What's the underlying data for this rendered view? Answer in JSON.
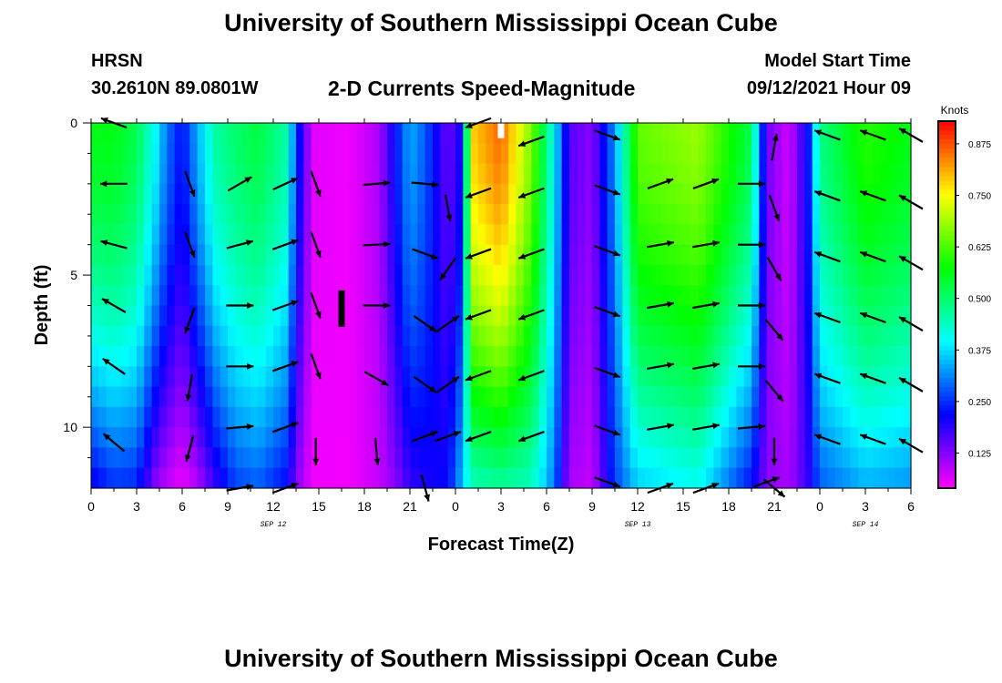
{
  "header": {
    "title": "University of Southern Mississippi Ocean Cube",
    "station": "HRSN",
    "coords": "30.2610N  89.0801W",
    "subtitle": "2-D Currents Speed-Magnitude",
    "model_start_label": "Model Start Time",
    "model_start_value": "09/12/2021 Hour 09"
  },
  "footer": {
    "title": "University of Southern Mississippi Ocean Cube"
  },
  "chart_data": {
    "type": "heatmap",
    "title": "2-D Currents Speed-Magnitude",
    "xlabel": "Forecast Time(Z)",
    "ylabel": "Depth (ft)",
    "x_range_hours": [
      0,
      54
    ],
    "y_range_ft": [
      0,
      12
    ],
    "y_reversed": true,
    "x_tick_labels": [
      "0",
      "3",
      "6",
      "9",
      "12",
      "15",
      "18",
      "21",
      "0",
      "3",
      "6",
      "9",
      "12",
      "15",
      "18",
      "21",
      "0",
      "3",
      "6"
    ],
    "y_tick_labels": [
      "0",
      "5",
      "10"
    ],
    "y_tick_values": [
      0,
      5,
      10
    ],
    "date_labels": [
      {
        "text": "SEP 12",
        "hour": 12
      },
      {
        "text": "SEP 13",
        "hour": 36
      },
      {
        "text": "SEP 14",
        "hour": 51
      }
    ],
    "colorbar": {
      "title": "Knots",
      "min": 0.04,
      "max": 0.93,
      "tick_labels": [
        "0.875",
        "0.750",
        "0.625",
        "0.500",
        "0.375",
        "0.250",
        "0.125"
      ],
      "tick_values": [
        0.875,
        0.75,
        0.625,
        0.5,
        0.375,
        0.25,
        0.125
      ]
    },
    "speed_profile_knots": [
      {
        "hour": 0,
        "surface": 0.56,
        "bottom": 0.2
      },
      {
        "hour": 1.5,
        "surface": 0.56,
        "bottom": 0.25
      },
      {
        "hour": 3,
        "surface": 0.52,
        "bottom": 0.24
      },
      {
        "hour": 4.2,
        "surface": 0.4,
        "bottom": 0.12
      },
      {
        "hour": 5,
        "surface": 0.3,
        "bottom": 0.08
      },
      {
        "hour": 6,
        "surface": 0.22,
        "bottom": 0.05
      },
      {
        "hour": 7,
        "surface": 0.34,
        "bottom": 0.09
      },
      {
        "hour": 8.2,
        "surface": 0.46,
        "bottom": 0.18
      },
      {
        "hour": 9.5,
        "surface": 0.5,
        "bottom": 0.26
      },
      {
        "hour": 11,
        "surface": 0.53,
        "bottom": 0.28
      },
      {
        "hour": 12.8,
        "surface": 0.46,
        "bottom": 0.22
      },
      {
        "hour": 13.8,
        "surface": 0.2,
        "bottom": 0.1
      },
      {
        "hour": 14.6,
        "surface": 0.06,
        "bottom": 0.05
      },
      {
        "hour": 17,
        "surface": 0.05,
        "bottom": 0.05
      },
      {
        "hour": 19,
        "surface": 0.1,
        "bottom": 0.08
      },
      {
        "hour": 20,
        "surface": 0.22,
        "bottom": 0.12
      },
      {
        "hour": 21,
        "surface": 0.34,
        "bottom": 0.18
      },
      {
        "hour": 22,
        "surface": 0.28,
        "bottom": 0.2
      },
      {
        "hour": 23.5,
        "surface": 0.14,
        "bottom": 0.22
      },
      {
        "hour": 24.5,
        "surface": 0.22,
        "bottom": 0.36
      },
      {
        "hour": 25,
        "surface": 0.78,
        "bottom": 0.44
      },
      {
        "hour": 27,
        "surface": 0.86,
        "bottom": 0.46
      },
      {
        "hour": 29,
        "surface": 0.66,
        "bottom": 0.44
      },
      {
        "hour": 30.5,
        "surface": 0.4,
        "bottom": 0.3
      },
      {
        "hour": 31.5,
        "surface": 0.16,
        "bottom": 0.1
      },
      {
        "hour": 33,
        "surface": 0.12,
        "bottom": 0.08
      },
      {
        "hour": 34.5,
        "surface": 0.32,
        "bottom": 0.26
      },
      {
        "hour": 36,
        "surface": 0.64,
        "bottom": 0.36
      },
      {
        "hour": 40,
        "surface": 0.68,
        "bottom": 0.4
      },
      {
        "hour": 43.5,
        "surface": 0.52,
        "bottom": 0.22
      },
      {
        "hour": 44.5,
        "surface": 0.14,
        "bottom": 0.12
      },
      {
        "hour": 46,
        "surface": 0.07,
        "bottom": 0.1
      },
      {
        "hour": 47.2,
        "surface": 0.22,
        "bottom": 0.18
      },
      {
        "hour": 48,
        "surface": 0.48,
        "bottom": 0.28
      },
      {
        "hour": 51,
        "surface": 0.6,
        "bottom": 0.34
      },
      {
        "hour": 54,
        "surface": 0.56,
        "bottom": 0.32
      }
    ],
    "current_arrows": [
      {
        "hour": 1.5,
        "depth": 0,
        "angle": 200
      },
      {
        "hour": 1.5,
        "depth": 2,
        "angle": 180
      },
      {
        "hour": 1.5,
        "depth": 4,
        "angle": 195
      },
      {
        "hour": 1.5,
        "depth": 6,
        "angle": 210
      },
      {
        "hour": 1.5,
        "depth": 8,
        "angle": 215
      },
      {
        "hour": 1.5,
        "depth": 10.5,
        "angle": 220
      },
      {
        "hour": 6.5,
        "depth": 2,
        "angle": 70
      },
      {
        "hour": 6.5,
        "depth": 4,
        "angle": 70
      },
      {
        "hour": 6.5,
        "depth": 6.5,
        "angle": 110
      },
      {
        "hour": 6.5,
        "depth": 8.7,
        "angle": 100
      },
      {
        "hour": 6.5,
        "depth": 10.7,
        "angle": 105
      },
      {
        "hour": 9.8,
        "depth": 2,
        "angle": -30
      },
      {
        "hour": 9.8,
        "depth": 4,
        "angle": -15
      },
      {
        "hour": 9.8,
        "depth": 6,
        "angle": 0
      },
      {
        "hour": 9.8,
        "depth": 8,
        "angle": 0
      },
      {
        "hour": 9.8,
        "depth": 10,
        "angle": -5
      },
      {
        "hour": 9.8,
        "depth": 12,
        "angle": -10
      },
      {
        "hour": 12.8,
        "depth": 2,
        "angle": -25
      },
      {
        "hour": 12.8,
        "depth": 4,
        "angle": -20
      },
      {
        "hour": 12.8,
        "depth": 6,
        "angle": -20
      },
      {
        "hour": 12.8,
        "depth": 8,
        "angle": -20
      },
      {
        "hour": 12.8,
        "depth": 10,
        "angle": -20
      },
      {
        "hour": 12.8,
        "depth": 12,
        "angle": -20
      },
      {
        "hour": 14.8,
        "depth": 2,
        "angle": 70
      },
      {
        "hour": 14.8,
        "depth": 4,
        "angle": 70
      },
      {
        "hour": 14.8,
        "depth": 6,
        "angle": 70
      },
      {
        "hour": 14.8,
        "depth": 8,
        "angle": 70
      },
      {
        "hour": 14.8,
        "depth": 10.8,
        "angle": 90
      },
      {
        "hour": 18.8,
        "depth": 2,
        "angle": -5
      },
      {
        "hour": 18.8,
        "depth": 4,
        "angle": -3
      },
      {
        "hour": 18.8,
        "depth": 6,
        "angle": 0
      },
      {
        "hour": 18.8,
        "depth": 8.4,
        "angle": 30
      },
      {
        "hour": 18.8,
        "depth": 10.8,
        "angle": 85
      },
      {
        "hour": 22,
        "depth": 2,
        "angle": 5
      },
      {
        "hour": 22,
        "depth": 4.3,
        "angle": 20
      },
      {
        "hour": 22,
        "depth": 6.6,
        "angle": 35
      },
      {
        "hour": 22,
        "depth": 8.6,
        "angle": 35
      },
      {
        "hour": 22,
        "depth": 10.3,
        "angle": -20
      },
      {
        "hour": 22,
        "depth": 12,
        "angle": 75
      },
      {
        "hour": 23.5,
        "depth": 2.8,
        "angle": 80
      },
      {
        "hour": 23.5,
        "depth": 4.8,
        "angle": 125
      },
      {
        "hour": 23.5,
        "depth": 6.6,
        "angle": -35
      },
      {
        "hour": 23.5,
        "depth": 8.6,
        "angle": -35
      },
      {
        "hour": 23.5,
        "depth": 10.3,
        "angle": -20
      },
      {
        "hour": 25.5,
        "depth": 0,
        "angle": 160
      },
      {
        "hour": 25.5,
        "depth": 2.3,
        "angle": 160
      },
      {
        "hour": 25.5,
        "depth": 4.3,
        "angle": 160
      },
      {
        "hour": 25.5,
        "depth": 6.3,
        "angle": 160
      },
      {
        "hour": 25.5,
        "depth": 8.3,
        "angle": 160
      },
      {
        "hour": 25.5,
        "depth": 10.3,
        "angle": 160
      },
      {
        "hour": 29,
        "depth": 0.6,
        "angle": 160
      },
      {
        "hour": 29,
        "depth": 2.3,
        "angle": 160
      },
      {
        "hour": 29,
        "depth": 4.3,
        "angle": 160
      },
      {
        "hour": 29,
        "depth": 6.3,
        "angle": 160
      },
      {
        "hour": 29,
        "depth": 8.3,
        "angle": 160
      },
      {
        "hour": 29,
        "depth": 10.3,
        "angle": 160
      },
      {
        "hour": 34,
        "depth": 0.4,
        "angle": 20
      },
      {
        "hour": 34,
        "depth": 2.2,
        "angle": 20
      },
      {
        "hour": 34,
        "depth": 4.2,
        "angle": 20
      },
      {
        "hour": 34,
        "depth": 6.2,
        "angle": 20
      },
      {
        "hour": 34,
        "depth": 8.2,
        "angle": 20
      },
      {
        "hour": 34,
        "depth": 10.1,
        "angle": 20
      },
      {
        "hour": 34,
        "depth": 11.8,
        "angle": 20
      },
      {
        "hour": 37.5,
        "depth": 2,
        "angle": -20
      },
      {
        "hour": 37.5,
        "depth": 4,
        "angle": -10
      },
      {
        "hour": 37.5,
        "depth": 6,
        "angle": -10
      },
      {
        "hour": 37.5,
        "depth": 8,
        "angle": -10
      },
      {
        "hour": 37.5,
        "depth": 10,
        "angle": -10
      },
      {
        "hour": 37.5,
        "depth": 12,
        "angle": -20
      },
      {
        "hour": 40.5,
        "depth": 2,
        "angle": -20
      },
      {
        "hour": 40.5,
        "depth": 4,
        "angle": -10
      },
      {
        "hour": 40.5,
        "depth": 6,
        "angle": -10
      },
      {
        "hour": 40.5,
        "depth": 8,
        "angle": -10
      },
      {
        "hour": 40.5,
        "depth": 10,
        "angle": -10
      },
      {
        "hour": 40.5,
        "depth": 12,
        "angle": -20
      },
      {
        "hour": 43.5,
        "depth": 2,
        "angle": 0
      },
      {
        "hour": 43.5,
        "depth": 4,
        "angle": 0
      },
      {
        "hour": 43.5,
        "depth": 6,
        "angle": 0
      },
      {
        "hour": 43.5,
        "depth": 8,
        "angle": 0
      },
      {
        "hour": 43.5,
        "depth": 10,
        "angle": -5
      },
      {
        "hour": 44.5,
        "depth": 11.8,
        "angle": -20
      },
      {
        "hour": 45,
        "depth": 12,
        "angle": 40
      },
      {
        "hour": 45,
        "depth": 0.8,
        "angle": -80
      },
      {
        "hour": 45,
        "depth": 2.8,
        "angle": 70
      },
      {
        "hour": 45,
        "depth": 4.8,
        "angle": 60
      },
      {
        "hour": 45,
        "depth": 6.8,
        "angle": 50
      },
      {
        "hour": 45,
        "depth": 8.8,
        "angle": 50
      },
      {
        "hour": 45,
        "depth": 10.8,
        "angle": 90
      },
      {
        "hour": 48.5,
        "depth": 0.4,
        "angle": -160
      },
      {
        "hour": 48.5,
        "depth": 2.4,
        "angle": -160
      },
      {
        "hour": 48.5,
        "depth": 4.4,
        "angle": -160
      },
      {
        "hour": 48.5,
        "depth": 6.4,
        "angle": -160
      },
      {
        "hour": 48.5,
        "depth": 8.4,
        "angle": -160
      },
      {
        "hour": 48.5,
        "depth": 10.4,
        "angle": -160
      },
      {
        "hour": 51.5,
        "depth": 0.4,
        "angle": -160
      },
      {
        "hour": 51.5,
        "depth": 2.4,
        "angle": -160
      },
      {
        "hour": 51.5,
        "depth": 4.4,
        "angle": -160
      },
      {
        "hour": 51.5,
        "depth": 6.4,
        "angle": -160
      },
      {
        "hour": 51.5,
        "depth": 8.4,
        "angle": -160
      },
      {
        "hour": 51.5,
        "depth": 10.4,
        "angle": -160
      },
      {
        "hour": 54,
        "depth": 0.4,
        "angle": -150
      },
      {
        "hour": 54,
        "depth": 2.6,
        "angle": -150
      },
      {
        "hour": 54,
        "depth": 4.6,
        "angle": -150
      },
      {
        "hour": 54,
        "depth": 6.6,
        "angle": -150
      },
      {
        "hour": 54,
        "depth": 8.6,
        "angle": -150
      },
      {
        "hour": 54,
        "depth": 10.6,
        "angle": -150
      }
    ],
    "markers": [
      {
        "name": "model-start-marker",
        "hour": 16.5,
        "depth_from": 5.5,
        "depth_to": 6.7,
        "color": "#000000"
      },
      {
        "name": "current-time-marker",
        "hour": 27,
        "depth_from": 0,
        "depth_to": 0.5,
        "color": "#ffffff"
      }
    ]
  }
}
